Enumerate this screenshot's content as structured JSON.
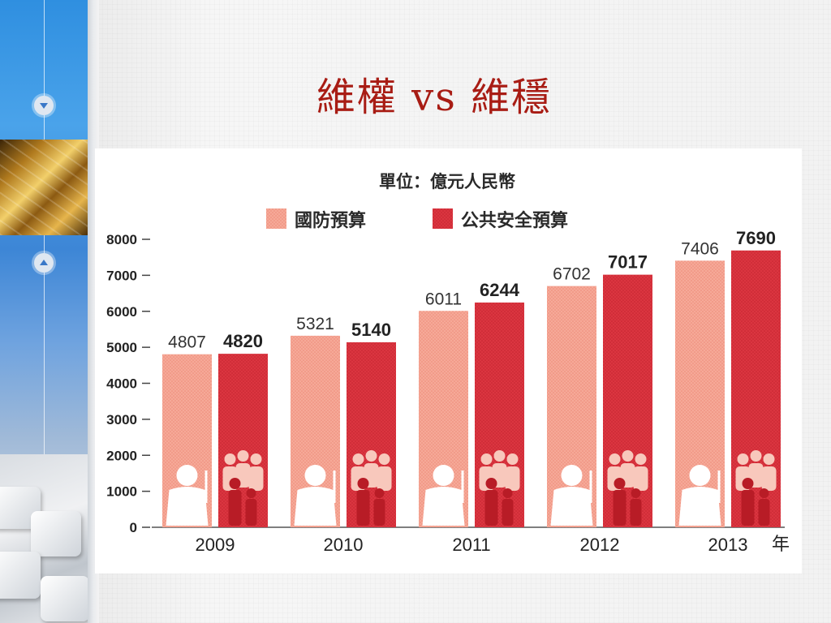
{
  "slide": {
    "title": "維權 vs 維穩"
  },
  "colors": {
    "defense": "#f4a394",
    "security": "#d8303a",
    "title": "#a81c14"
  },
  "chart_data": {
    "type": "bar",
    "unit_label": "單位：億元人民幣",
    "categories": [
      "2009",
      "2010",
      "2011",
      "2012",
      "2013"
    ],
    "x_suffix": "年",
    "series": [
      {
        "name": "國防預算",
        "values": [
          4807,
          5321,
          6011,
          6702,
          7406
        ]
      },
      {
        "name": "公共安全預算",
        "values": [
          4820,
          5140,
          6244,
          7017,
          7690
        ]
      }
    ],
    "y_ticks": [
      "0",
      "1000",
      "2000",
      "3000",
      "4000",
      "5000",
      "6000",
      "7000",
      "8000"
    ],
    "ylim": [
      0,
      8000
    ],
    "legend_position": "top",
    "grid": false
  }
}
